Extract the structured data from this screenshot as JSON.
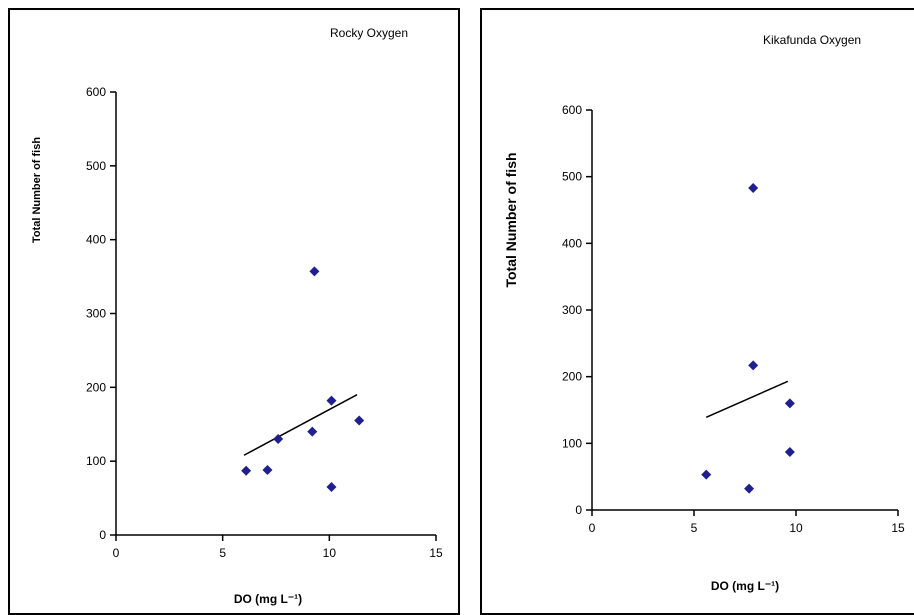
{
  "chart_data": [
    {
      "type": "scatter",
      "title": "Rocky Oxygen",
      "xlabel": "DO (mg L⁻¹)",
      "ylabel": "Total Number of fish",
      "xlim": [
        0,
        15
      ],
      "ylim": [
        0,
        600
      ],
      "xticks": [
        0,
        5,
        10,
        15
      ],
      "yticks": [
        0,
        100,
        200,
        300,
        400,
        500,
        600
      ],
      "grid": false,
      "marker_color": "#1f1f8f",
      "points": [
        {
          "x": 6.1,
          "y": 87
        },
        {
          "x": 7.1,
          "y": 88
        },
        {
          "x": 7.6,
          "y": 130
        },
        {
          "x": 9.2,
          "y": 140
        },
        {
          "x": 9.3,
          "y": 357
        },
        {
          "x": 10.1,
          "y": 182
        },
        {
          "x": 10.1,
          "y": 65
        },
        {
          "x": 11.4,
          "y": 155
        }
      ],
      "trendline": {
        "x": [
          6.0,
          11.3
        ],
        "y": [
          108,
          190
        ]
      }
    },
    {
      "type": "scatter",
      "title": "Kikafunda Oxygen",
      "xlabel": "DO (mg L⁻¹)",
      "ylabel": "Total Number of fish",
      "xlim": [
        0,
        15
      ],
      "ylim": [
        0,
        600
      ],
      "xticks": [
        0,
        5,
        10,
        15
      ],
      "yticks": [
        0,
        100,
        200,
        300,
        400,
        500,
        600
      ],
      "grid": false,
      "marker_color": "#1f1f8f",
      "points": [
        {
          "x": 5.6,
          "y": 53
        },
        {
          "x": 7.7,
          "y": 32
        },
        {
          "x": 7.9,
          "y": 483
        },
        {
          "x": 7.9,
          "y": 217
        },
        {
          "x": 9.7,
          "y": 160
        },
        {
          "x": 9.7,
          "y": 87
        }
      ],
      "trendline": {
        "x": [
          5.6,
          9.6
        ],
        "y": [
          139,
          193
        ]
      }
    }
  ]
}
